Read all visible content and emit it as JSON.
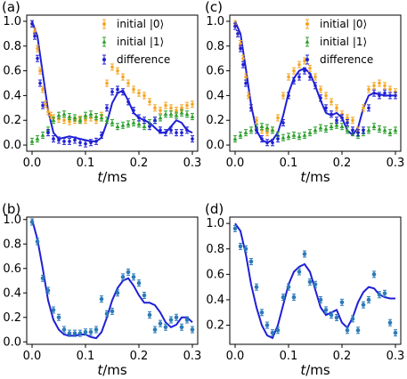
{
  "colors": {
    "initial0": "#f5a623",
    "initial1": "#2ca02c",
    "difference": "#1f1fd6",
    "exp": "#2b7bb9",
    "theory": "#1f1fd6"
  },
  "chart_data": [
    {
      "panel": "(a)",
      "type": "scatter",
      "xlabel": "t/ms",
      "ylabel": "",
      "xlim": [
        -0.01,
        0.31
      ],
      "ylim": [
        -0.05,
        1.05
      ],
      "xticks": [
        "0.0",
        "0.1",
        "0.2",
        "0.3"
      ],
      "yticks": [
        "0.0",
        "0.2",
        "0.4",
        "0.6",
        "0.8",
        "1.0"
      ],
      "legend": [
        "initial |0⟩",
        "initial |1⟩",
        "difference"
      ],
      "series": [
        {
          "name": "initial |0⟩",
          "marker": "dot",
          "x": [
            0,
            0.005,
            0.01,
            0.015,
            0.02,
            0.025,
            0.03,
            0.035,
            0.04,
            0.05,
            0.06,
            0.07,
            0.08,
            0.09,
            0.1,
            0.11,
            0.12,
            0.13,
            0.14,
            0.15,
            0.16,
            0.17,
            0.18,
            0.19,
            0.2,
            0.21,
            0.22,
            0.23,
            0.24,
            0.25,
            0.26,
            0.27,
            0.28,
            0.29,
            0.3
          ],
          "y": [
            0.98,
            0.92,
            0.78,
            0.6,
            0.45,
            0.33,
            0.27,
            0.24,
            0.22,
            0.21,
            0.2,
            0.19,
            0.2,
            0.21,
            0.2,
            0.22,
            0.2,
            0.24,
            0.5,
            0.63,
            0.6,
            0.55,
            0.5,
            0.45,
            0.42,
            0.4,
            0.35,
            0.3,
            0.28,
            0.32,
            0.3,
            0.28,
            0.3,
            0.32,
            0.33
          ]
        },
        {
          "name": "initial |1⟩",
          "marker": "triangle",
          "x": [
            0,
            0.01,
            0.02,
            0.03,
            0.04,
            0.05,
            0.06,
            0.07,
            0.08,
            0.09,
            0.1,
            0.11,
            0.12,
            0.13,
            0.14,
            0.15,
            0.16,
            0.17,
            0.18,
            0.19,
            0.2,
            0.21,
            0.22,
            0.23,
            0.24,
            0.25,
            0.26,
            0.27,
            0.28,
            0.29,
            0.3
          ],
          "y": [
            0.03,
            0.05,
            0.08,
            0.12,
            0.2,
            0.24,
            0.25,
            0.23,
            0.22,
            0.2,
            0.24,
            0.25,
            0.23,
            0.22,
            0.2,
            0.18,
            0.15,
            0.16,
            0.17,
            0.18,
            0.17,
            0.15,
            0.18,
            0.2,
            0.22,
            0.25,
            0.25,
            0.24,
            0.26,
            0.25,
            0.23
          ]
        },
        {
          "name": "difference",
          "marker": "dot",
          "x": [
            0,
            0.005,
            0.01,
            0.015,
            0.02,
            0.03,
            0.04,
            0.05,
            0.06,
            0.07,
            0.08,
            0.09,
            0.1,
            0.11,
            0.12,
            0.13,
            0.14,
            0.15,
            0.16,
            0.17,
            0.18,
            0.19,
            0.2,
            0.21,
            0.22,
            0.23,
            0.24,
            0.25,
            0.26,
            0.27,
            0.28,
            0.29,
            0.3
          ],
          "y": [
            0.98,
            0.88,
            0.7,
            0.5,
            0.32,
            0.1,
            0.05,
            0.04,
            0.03,
            0.03,
            0.04,
            0.02,
            0.01,
            0.02,
            0.03,
            0.08,
            0.3,
            0.43,
            0.45,
            0.43,
            0.35,
            0.28,
            0.22,
            0.2,
            0.15,
            0.2,
            0.12,
            0.1,
            0.12,
            0.1,
            0.1,
            0.12,
            0.05
          ]
        }
      ],
      "theory": {
        "x": [
          0,
          0.01,
          0.02,
          0.03,
          0.04,
          0.05,
          0.06,
          0.07,
          0.08,
          0.09,
          0.1,
          0.11,
          0.12,
          0.13,
          0.14,
          0.15,
          0.16,
          0.17,
          0.18,
          0.19,
          0.2,
          0.21,
          0.22,
          0.23,
          0.24,
          0.25,
          0.26,
          0.27,
          0.28,
          0.29,
          0.3
        ],
        "y": [
          1.0,
          0.88,
          0.58,
          0.28,
          0.1,
          0.05,
          0.06,
          0.07,
          0.06,
          0.05,
          0.04,
          0.03,
          0.03,
          0.06,
          0.18,
          0.34,
          0.42,
          0.44,
          0.36,
          0.26,
          0.22,
          0.2,
          0.18,
          0.14,
          0.1,
          0.1,
          0.15,
          0.2,
          0.18,
          0.12,
          0.1
        ]
      }
    },
    {
      "panel": "(c)",
      "type": "scatter",
      "xlabel": "t/ms",
      "ylabel": "",
      "xlim": [
        -0.01,
        0.31
      ],
      "ylim": [
        -0.05,
        1.05
      ],
      "xticks": [
        "0.0",
        "0.1",
        "0.2",
        "0.3"
      ],
      "yticks": [
        "0.0",
        "0.2",
        "0.4",
        "0.6",
        "0.8",
        "1.0"
      ],
      "legend": [
        "initial |0⟩",
        "initial |1⟩",
        "difference"
      ],
      "series": [
        {
          "name": "initial |0⟩",
          "marker": "dot",
          "x": [
            0,
            0.005,
            0.01,
            0.015,
            0.02,
            0.025,
            0.03,
            0.04,
            0.05,
            0.06,
            0.07,
            0.08,
            0.09,
            0.1,
            0.11,
            0.12,
            0.13,
            0.14,
            0.15,
            0.16,
            0.17,
            0.18,
            0.19,
            0.2,
            0.21,
            0.22,
            0.23,
            0.24,
            0.25,
            0.26,
            0.27,
            0.28,
            0.29,
            0.3
          ],
          "y": [
            0.98,
            0.9,
            0.82,
            0.7,
            0.55,
            0.4,
            0.3,
            0.2,
            0.12,
            0.1,
            0.12,
            0.22,
            0.4,
            0.55,
            0.6,
            0.65,
            0.68,
            0.62,
            0.55,
            0.45,
            0.4,
            0.35,
            0.3,
            0.25,
            0.22,
            0.2,
            0.12,
            0.3,
            0.45,
            0.48,
            0.5,
            0.48,
            0.45,
            0.43
          ]
        },
        {
          "name": "initial |1⟩",
          "marker": "triangle",
          "x": [
            0,
            0.01,
            0.02,
            0.03,
            0.04,
            0.05,
            0.06,
            0.07,
            0.08,
            0.09,
            0.1,
            0.11,
            0.12,
            0.13,
            0.14,
            0.15,
            0.16,
            0.17,
            0.18,
            0.19,
            0.2,
            0.21,
            0.22,
            0.23,
            0.24,
            0.25,
            0.26,
            0.27,
            0.28,
            0.29,
            0.3
          ],
          "y": [
            0.05,
            0.08,
            0.1,
            0.12,
            0.14,
            0.15,
            0.14,
            0.12,
            0.08,
            0.06,
            0.07,
            0.08,
            0.07,
            0.08,
            0.1,
            0.12,
            0.14,
            0.13,
            0.15,
            0.16,
            0.15,
            0.12,
            0.1,
            0.08,
            0.1,
            0.12,
            0.15,
            0.13,
            0.12,
            0.1,
            0.12
          ]
        },
        {
          "name": "difference",
          "marker": "dot",
          "x": [
            0,
            0.005,
            0.01,
            0.015,
            0.02,
            0.03,
            0.04,
            0.05,
            0.06,
            0.07,
            0.08,
            0.09,
            0.1,
            0.11,
            0.12,
            0.13,
            0.14,
            0.15,
            0.16,
            0.17,
            0.18,
            0.19,
            0.2,
            0.21,
            0.22,
            0.23,
            0.24,
            0.25,
            0.26,
            0.27,
            0.28,
            0.29,
            0.3
          ],
          "y": [
            0.96,
            0.9,
            0.78,
            0.65,
            0.5,
            0.3,
            0.12,
            0.05,
            0.02,
            0.02,
            0.05,
            0.18,
            0.4,
            0.52,
            0.55,
            0.6,
            0.55,
            0.48,
            0.38,
            0.3,
            0.25,
            0.2,
            0.22,
            0.18,
            0.12,
            0.1,
            0.12,
            0.3,
            0.42,
            0.4,
            0.42,
            0.4,
            0.4
          ]
        }
      ],
      "theory": {
        "x": [
          0,
          0.01,
          0.02,
          0.03,
          0.04,
          0.05,
          0.06,
          0.07,
          0.08,
          0.09,
          0.1,
          0.11,
          0.12,
          0.13,
          0.14,
          0.15,
          0.16,
          0.17,
          0.18,
          0.19,
          0.2,
          0.21,
          0.22,
          0.23,
          0.24,
          0.25,
          0.26,
          0.27,
          0.28,
          0.29,
          0.3
        ],
        "y": [
          1.0,
          0.9,
          0.62,
          0.32,
          0.12,
          0.04,
          0.02,
          0.04,
          0.1,
          0.24,
          0.42,
          0.54,
          0.6,
          0.62,
          0.58,
          0.48,
          0.36,
          0.26,
          0.24,
          0.26,
          0.22,
          0.12,
          0.08,
          0.14,
          0.3,
          0.4,
          0.42,
          0.41,
          0.4,
          0.4,
          0.4
        ]
      }
    },
    {
      "panel": "(b)",
      "type": "scatter",
      "xlabel": "t/ms",
      "ylabel": "",
      "xlim": [
        -0.01,
        0.31
      ],
      "ylim": [
        -0.02,
        1.02
      ],
      "xticks": [
        "0.0",
        "0.1",
        "0.2",
        "0.3"
      ],
      "yticks": [
        "0.0",
        "0.2",
        "0.4",
        "0.6",
        "0.8",
        "1.0"
      ],
      "series": [
        {
          "name": "",
          "marker": "dot",
          "x": [
            0,
            0.01,
            0.02,
            0.03,
            0.04,
            0.05,
            0.06,
            0.07,
            0.08,
            0.09,
            0.1,
            0.11,
            0.12,
            0.13,
            0.14,
            0.15,
            0.16,
            0.17,
            0.18,
            0.19,
            0.2,
            0.21,
            0.22,
            0.23,
            0.24,
            0.25,
            0.26,
            0.27,
            0.28,
            0.29,
            0.3
          ],
          "y": [
            0.98,
            0.82,
            0.52,
            0.42,
            0.26,
            0.2,
            0.1,
            0.07,
            0.07,
            0.07,
            0.08,
            0.08,
            0.1,
            0.35,
            0.23,
            0.25,
            0.4,
            0.53,
            0.57,
            0.53,
            0.48,
            0.38,
            0.22,
            0.1,
            0.15,
            0.12,
            0.18,
            0.2,
            0.12,
            0.18,
            0.1
          ]
        }
      ],
      "theory": {
        "x": [
          0,
          0.01,
          0.02,
          0.03,
          0.04,
          0.05,
          0.06,
          0.07,
          0.08,
          0.09,
          0.1,
          0.11,
          0.12,
          0.13,
          0.14,
          0.15,
          0.16,
          0.17,
          0.18,
          0.19,
          0.2,
          0.21,
          0.22,
          0.23,
          0.24,
          0.25,
          0.26,
          0.27,
          0.28,
          0.29,
          0.3
        ],
        "y": [
          1.0,
          0.84,
          0.6,
          0.34,
          0.18,
          0.1,
          0.06,
          0.05,
          0.05,
          0.06,
          0.06,
          0.04,
          0.03,
          0.08,
          0.2,
          0.34,
          0.44,
          0.5,
          0.52,
          0.46,
          0.38,
          0.32,
          0.32,
          0.3,
          0.24,
          0.16,
          0.12,
          0.14,
          0.2,
          0.2,
          0.16
        ]
      }
    },
    {
      "panel": "(d)",
      "type": "scatter",
      "xlabel": "t/ms",
      "ylabel": "",
      "xlim": [
        -0.01,
        0.31
      ],
      "ylim": [
        0.05,
        1.05
      ],
      "xticks": [
        "0.0",
        "0.1",
        "0.2",
        "0.3"
      ],
      "yticks": [
        "0.2",
        "0.4",
        "0.6",
        "0.8",
        "1.0"
      ],
      "series": [
        {
          "name": "",
          "marker": "dot",
          "x": [
            0,
            0.01,
            0.02,
            0.03,
            0.04,
            0.05,
            0.06,
            0.07,
            0.08,
            0.09,
            0.1,
            0.11,
            0.12,
            0.13,
            0.14,
            0.15,
            0.16,
            0.17,
            0.18,
            0.19,
            0.2,
            0.21,
            0.22,
            0.23,
            0.24,
            0.25,
            0.26,
            0.27,
            0.28,
            0.29,
            0.3
          ],
          "y": [
            0.96,
            0.82,
            0.8,
            0.7,
            0.5,
            0.3,
            0.2,
            0.14,
            0.16,
            0.42,
            0.5,
            0.42,
            0.62,
            0.76,
            0.54,
            0.52,
            0.4,
            0.32,
            0.28,
            0.26,
            0.38,
            0.16,
            0.25,
            0.16,
            0.36,
            0.4,
            0.6,
            0.44,
            0.45,
            0.22,
            0.14
          ]
        }
      ],
      "theory": {
        "x": [
          0,
          0.01,
          0.02,
          0.03,
          0.04,
          0.05,
          0.06,
          0.07,
          0.08,
          0.09,
          0.1,
          0.11,
          0.12,
          0.13,
          0.14,
          0.15,
          0.16,
          0.17,
          0.18,
          0.19,
          0.2,
          0.21,
          0.22,
          0.23,
          0.24,
          0.25,
          0.26,
          0.27,
          0.28,
          0.29,
          0.3
        ],
        "y": [
          1.0,
          0.94,
          0.76,
          0.52,
          0.34,
          0.2,
          0.12,
          0.1,
          0.2,
          0.36,
          0.52,
          0.62,
          0.66,
          0.68,
          0.62,
          0.48,
          0.34,
          0.28,
          0.3,
          0.32,
          0.22,
          0.18,
          0.26,
          0.38,
          0.46,
          0.5,
          0.49,
          0.44,
          0.42,
          0.41,
          0.41
        ]
      }
    }
  ]
}
